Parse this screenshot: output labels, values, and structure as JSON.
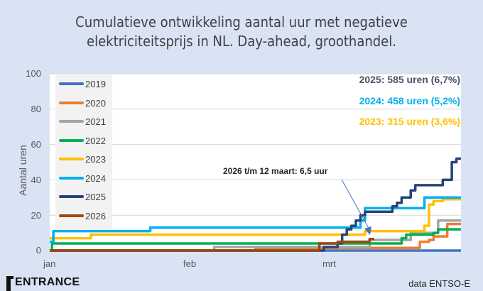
{
  "title_lines": [
    "Cumulatieve ontwikkeling aantal uur met negatieve",
    "elektriciteitsprijs in NL. Day-ahead, groothandel."
  ],
  "chart_data": {
    "type": "line",
    "title": "Cumulatieve ontwikkeling aantal uur met negatieve elektriciteitsprijs in NL. Day-ahead, groothandel.",
    "xlabel": "",
    "ylabel": "Aantal uren",
    "ylim": [
      0,
      100
    ],
    "yticks": [
      "0",
      "20",
      "40",
      "60",
      "80",
      "100"
    ],
    "xticks": [
      "jan",
      "feb",
      "mrt"
    ],
    "grid": true,
    "legend_position": "upper-left",
    "x_unit": "day of year (0 = 1 jan, approx. 0-90)",
    "series": [
      {
        "name": "2019",
        "color": "#4472c4",
        "points": [
          [
            0,
            0
          ],
          [
            90,
            0
          ]
        ]
      },
      {
        "name": "2020",
        "color": "#ed7d31",
        "points": [
          [
            0,
            0
          ],
          [
            45,
            0
          ],
          [
            45,
            1.5
          ],
          [
            81,
            1.5
          ],
          [
            81,
            5
          ],
          [
            83,
            5
          ],
          [
            83,
            6
          ],
          [
            84,
            6
          ],
          [
            84,
            8
          ],
          [
            87,
            8
          ],
          [
            87,
            15
          ],
          [
            90,
            15
          ]
        ]
      },
      {
        "name": "2021",
        "color": "#a5a5a5",
        "points": [
          [
            0,
            0
          ],
          [
            36,
            0
          ],
          [
            36,
            2
          ],
          [
            70,
            2
          ],
          [
            70,
            6
          ],
          [
            79,
            6
          ],
          [
            79,
            10
          ],
          [
            85,
            10
          ],
          [
            85,
            17
          ],
          [
            90,
            17
          ]
        ]
      },
      {
        "name": "2022",
        "color": "#00b050",
        "points": [
          [
            0,
            0
          ],
          [
            0.5,
            0
          ],
          [
            0.5,
            4
          ],
          [
            77,
            4
          ],
          [
            77,
            7
          ],
          [
            78,
            7
          ],
          [
            78,
            9
          ],
          [
            84,
            9
          ],
          [
            84,
            10
          ],
          [
            85,
            10
          ],
          [
            85,
            12
          ],
          [
            90,
            12
          ]
        ]
      },
      {
        "name": "2023",
        "color": "#ffc000",
        "points": [
          [
            0,
            7
          ],
          [
            9,
            7
          ],
          [
            9,
            9
          ],
          [
            69,
            9
          ],
          [
            69,
            11
          ],
          [
            82,
            11
          ],
          [
            82,
            14
          ],
          [
            83,
            14
          ],
          [
            83,
            26
          ],
          [
            84,
            26
          ],
          [
            84,
            28
          ],
          [
            86,
            28
          ],
          [
            86,
            29
          ],
          [
            90,
            29
          ]
        ]
      },
      {
        "name": "2024",
        "color": "#00b0f0",
        "points": [
          [
            0,
            5
          ],
          [
            0.8,
            5
          ],
          [
            0.8,
            11
          ],
          [
            22,
            11
          ],
          [
            22,
            13
          ],
          [
            68,
            13
          ],
          [
            68,
            17
          ],
          [
            69,
            17
          ],
          [
            69,
            24
          ],
          [
            82,
            24
          ],
          [
            82,
            30
          ],
          [
            90,
            30
          ]
        ]
      },
      {
        "name": "2025",
        "color": "#264478",
        "points": [
          [
            0,
            0
          ],
          [
            60,
            0
          ],
          [
            60,
            2
          ],
          [
            63,
            2
          ],
          [
            63,
            4
          ],
          [
            64,
            4
          ],
          [
            64,
            9
          ],
          [
            65,
            9
          ],
          [
            65,
            12
          ],
          [
            66,
            12
          ],
          [
            66,
            14
          ],
          [
            67,
            14
          ],
          [
            67,
            17
          ],
          [
            68,
            17
          ],
          [
            68,
            20
          ],
          [
            69,
            20
          ],
          [
            69,
            22
          ],
          [
            75,
            22
          ],
          [
            75,
            25
          ],
          [
            76,
            25
          ],
          [
            76,
            27
          ],
          [
            77,
            27
          ],
          [
            77,
            30
          ],
          [
            79,
            30
          ],
          [
            79,
            34
          ],
          [
            80,
            34
          ],
          [
            80,
            37
          ],
          [
            86,
            37
          ],
          [
            86,
            40
          ],
          [
            88,
            40
          ],
          [
            88,
            50
          ],
          [
            89,
            50
          ],
          [
            89,
            52
          ],
          [
            90,
            52
          ]
        ]
      },
      {
        "name": "2026",
        "color": "#9e480e",
        "points": [
          [
            0,
            0
          ],
          [
            59,
            0
          ],
          [
            59,
            4
          ],
          [
            63,
            4
          ],
          [
            63,
            5
          ],
          [
            70,
            5
          ],
          [
            70,
            6.5
          ],
          [
            71,
            6.5
          ]
        ]
      }
    ],
    "annotations": [
      {
        "text": "2025: 585 uren (6,7%)",
        "color": "#44546a"
      },
      {
        "text": "2024: 458 uren (5,2%)",
        "color": "#00b0f0"
      },
      {
        "text": "2023: 315 uren (3,6%)",
        "color": "#ffc000"
      },
      {
        "text": "2026 t/m 12 maart: 6,5 uur",
        "color": "#262626",
        "arrow_to": [
          70.5,
          8
        ]
      }
    ]
  },
  "legend": [
    {
      "label": "2019",
      "color": "#4472c4"
    },
    {
      "label": "2020",
      "color": "#ed7d31"
    },
    {
      "label": "2021",
      "color": "#a5a5a5"
    },
    {
      "label": "2022",
      "color": "#00b050"
    },
    {
      "label": "2023",
      "color": "#ffc000"
    },
    {
      "label": "2024",
      "color": "#00b0f0"
    },
    {
      "label": "2025",
      "color": "#264478"
    },
    {
      "label": "2026",
      "color": "#9e480e"
    }
  ],
  "totals": {
    "t2025": "2025: 585 uren (6,7%)",
    "t2024": "2024: 458 uren (5,2%)",
    "t2023": "2023: 315 uren (3,6%)"
  },
  "annotation_text": "2026 t/m 12 maart: 6,5 uur",
  "axis": {
    "ylabel": "Aantal uren",
    "yticks": [
      "100",
      "80",
      "60",
      "40",
      "20",
      "0"
    ],
    "xticks": [
      "jan",
      "feb",
      "mrt"
    ]
  },
  "footer": {
    "logo": "ENTRANCE",
    "source": "data ENTSO-E"
  }
}
